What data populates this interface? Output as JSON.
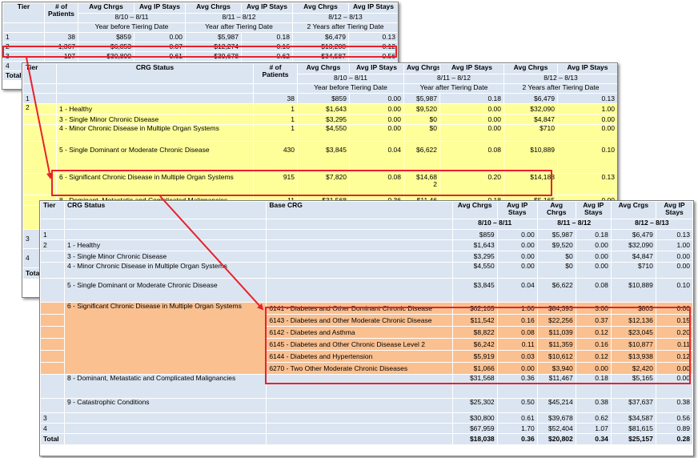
{
  "headers": {
    "tier": "Tier",
    "patients": "# of Patients",
    "avg_chrgs": "Avg Chrgs",
    "avg_ip_stays": "Avg IP Stays",
    "crg_status": "CRG Status",
    "base_crg": "Base CRG",
    "avg_crgs": "Avg Crgs",
    "period1": "8/10 – 8/11",
    "period2": "8/11 – 8/12",
    "period3": "8/12 – 8/13",
    "year_before": "Year before Tiering Date",
    "year_after": "Year after Tiering Date",
    "two_years_after": "2 Years after Tiering Date"
  },
  "table1": {
    "rows": [
      {
        "tier": "1",
        "patients": "38",
        "c1": "$859",
        "s1": "0.00",
        "c2": "$5,987",
        "s2": "0.18",
        "c3": "$6,479",
        "s3": "0.13"
      },
      {
        "tier": "2",
        "patients": "1,367",
        "c1": "$6,853",
        "s1": "0.07",
        "c2": "$12,274",
        "s2": "0.16",
        "c3": "$13,208",
        "s3": "0.12"
      },
      {
        "tier": "3",
        "patients": "197",
        "c1": "$30,800",
        "s1": "0.61",
        "c2": "$39,678",
        "s2": "0.62",
        "c3": "$34,587",
        "s3": "0.56"
      },
      {
        "tier": "4",
        "patients": "",
        "c1": "",
        "s1": "",
        "c2": "",
        "s2": "",
        "c3": "",
        "s3": ""
      }
    ],
    "total_label": "Total"
  },
  "table2": {
    "tier1": {
      "tier": "1",
      "patients": "38",
      "c1": "$859",
      "s1": "0.00",
      "c2": "$5,987",
      "s2": "0.18",
      "c3": "$6,479",
      "s3": "0.13"
    },
    "tier2_label": "2",
    "tier2_rows": [
      {
        "status": "1 - Healthy",
        "patients": "1",
        "c1": "$1,643",
        "s1": "0.00",
        "c2": "$9,520",
        "s2": "0.00",
        "c3": "$32,090",
        "s3": "1.00"
      },
      {
        "status": "3 - Single Minor Chronic Disease",
        "patients": "1",
        "c1": "$3,295",
        "s1": "0.00",
        "c2": "$0",
        "s2": "0.00",
        "c3": "$4,847",
        "s3": "0.00"
      },
      {
        "status": "4 - Minor Chronic Disease in Multiple Organ Systems",
        "patients": "1",
        "c1": "$4,550",
        "s1": "0.00",
        "c2": "$0",
        "s2": "0.00",
        "c3": "$710",
        "s3": "0.00"
      },
      {
        "status": "5 - Single Dominant or Moderate Chronic Disease",
        "patients": "430",
        "c1": "$3,845",
        "s1": "0.04",
        "c2": "$6,622",
        "s2": "0.08",
        "c3": "$10,889",
        "s3": "0.10"
      },
      {
        "status": "6 - Significant Chronic Disease in Multiple Organ Systems",
        "patients": "915",
        "c1": "$7,820",
        "s1": "0.08",
        "c2a": "$14,68",
        "c2b": "2",
        "s2": "0.20",
        "c3": "$14,183",
        "s3": "0.13"
      },
      {
        "status": "8 - Dominant, Metastatic and Complicated Malignancies",
        "patients": "11",
        "c1": "$31,568",
        "s1": "0.36",
        "c2": "$11,46",
        "s2": "0.18",
        "c3": "$5,165",
        "s3": "0.00"
      }
    ],
    "tier3_label": "3",
    "tier4_label": "4",
    "total_label": "Tota"
  },
  "table3": {
    "tier1": {
      "tier": "1",
      "c1": "$859",
      "s1": "0.00",
      "c2": "$5,987",
      "s2": "0.18",
      "c3": "$6,479",
      "s3": "0.13"
    },
    "tier2_label": "2",
    "tier2_rows": [
      {
        "status": "1 - Healthy",
        "c1": "$1,643",
        "s1": "0.00",
        "c2": "$9,520",
        "s2": "0.00",
        "c3": "$32,090",
        "s3": "1.00"
      },
      {
        "status": "3 - Single Minor Chronic Disease",
        "c1": "$3,295",
        "s1": "0.00",
        "c2": "$0",
        "s2": "0.00",
        "c3": "$4,847",
        "s3": "0.00"
      },
      {
        "status": "4 - Minor Chronic Disease in Multiple Organ Systems",
        "c1": "$4,550",
        "s1": "0.00",
        "c2": "$0",
        "s2": "0.00",
        "c3": "$710",
        "s3": "0.00"
      },
      {
        "status": "5 - Single Dominant or Moderate Chronic Disease",
        "c1": "$3,845",
        "s1": "0.04",
        "c2": "$6,622",
        "s2": "0.08",
        "c3": "$10,889",
        "s3": "0.10"
      }
    ],
    "crg6_status": "6 - Significant Chronic Disease in Multiple Organ Systems",
    "crg6_rows": [
      {
        "base": "6141 - Diabetes and Other Dominant Chronic Disease",
        "c1": "$62,105",
        "s1": "1.00",
        "c2": "$84,393",
        "s2": "3.00",
        "c3": "$803",
        "s3": "0.00"
      },
      {
        "base": "6143 - Diabetes and Other Moderate Chronic Disease",
        "c1": "$11,542",
        "s1": "0.16",
        "c2": "$22,256",
        "s2": "0.37",
        "c3": "$12,136",
        "s3": "0.15"
      },
      {
        "base": "6142 - Diabetes and Asthma",
        "c1": "$8,822",
        "s1": "0.08",
        "c2": "$11,039",
        "s2": "0.12",
        "c3": "$23,045",
        "s3": "0.20"
      },
      {
        "base": "6145 - Diabetes and Other Chronic Disease Level 2",
        "c1": "$6,242",
        "s1": "0.11",
        "c2": "$11,359",
        "s2": "0.16",
        "c3": "$10,877",
        "s3": "0.11"
      },
      {
        "base": "6144 - Diabetes and Hypertension",
        "c1": "$5,919",
        "s1": "0.03",
        "c2": "$10,612",
        "s2": "0.12",
        "c3": "$13,938",
        "s3": "0.12"
      },
      {
        "base": "6270 - Two Other Moderate Chronic Diseases",
        "c1": "$1,066",
        "s1": "0.00",
        "c2": "$3,940",
        "s2": "0.00",
        "c3": "$2,420",
        "s3": "0.00"
      }
    ],
    "crg8": {
      "status": "8 - Dominant, Metastatic and Complicated Malignancies",
      "c1": "$31,568",
      "s1": "0.36",
      "c2": "$11,467",
      "s2": "0.18",
      "c3": "$5,165",
      "s3": "0.00"
    },
    "crg9": {
      "status": "9 - Catastrophic Conditions",
      "c1": "$25,302",
      "s1": "0.50",
      "c2": "$45,214",
      "s2": "0.38",
      "c3": "$37,637",
      "s3": "0.38"
    },
    "tier3": {
      "tier": "3",
      "c1": "$30,800",
      "s1": "0.61",
      "c2": "$39,678",
      "s2": "0.62",
      "c3": "$34,587",
      "s3": "0.56"
    },
    "tier4": {
      "tier": "4",
      "c1": "$67,959",
      "s1": "1.70",
      "c2": "$52,404",
      "s2": "1.07",
      "c3": "$81,615",
      "s3": "0.89"
    },
    "total": {
      "label": "Total",
      "c1": "$18,038",
      "s1": "0.36",
      "c2": "$20,802",
      "s2": "0.34",
      "c3": "$25,157",
      "s3": "0.28"
    }
  },
  "colors": {
    "header_blue": "#dbe5f1",
    "highlight_yellow": "#ffff99",
    "highlight_orange": "#fac090",
    "arrow_red": "#e8222a"
  }
}
